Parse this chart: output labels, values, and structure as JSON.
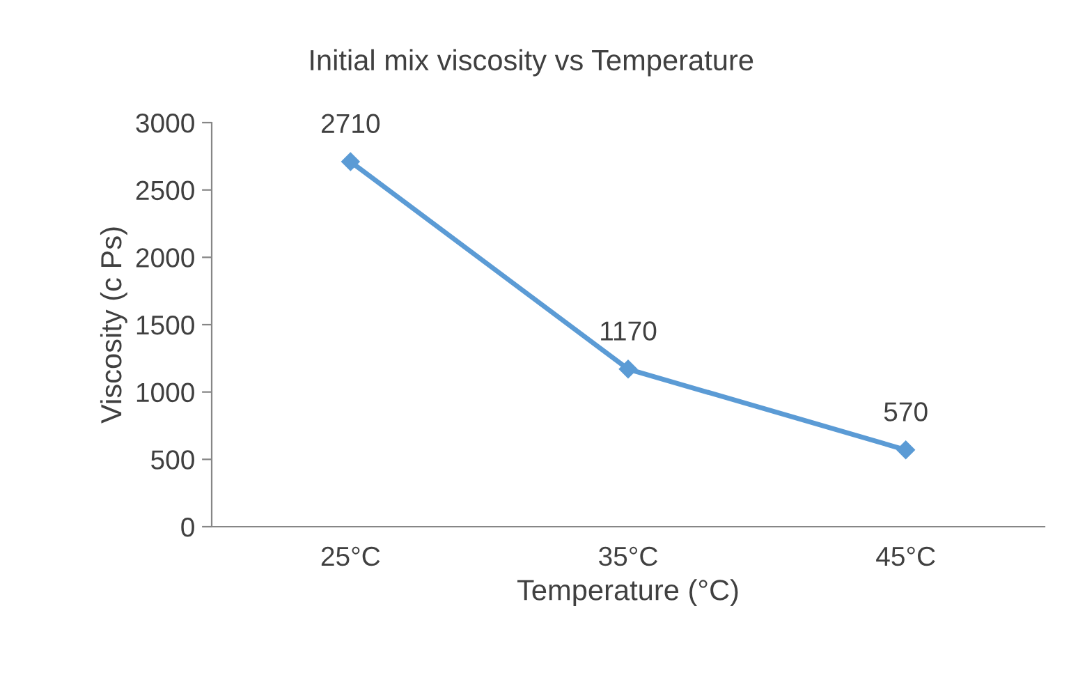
{
  "chart_data": {
    "type": "line",
    "title": "Initial mix viscosity vs Temperature",
    "xlabel": "Temperature (°C)",
    "ylabel": "Viscosity (c Ps)",
    "categories": [
      "25°C",
      "35°C",
      "45°C"
    ],
    "series": [
      {
        "color": "#5b9bd5",
        "values": [
          2710,
          1170,
          570
        ]
      }
    ],
    "ylim": [
      0,
      3000
    ],
    "yticks": [
      0,
      500,
      1000,
      1500,
      2000,
      2500,
      3000
    ],
    "marker": "diamond",
    "line_style": "solid",
    "data_labels": true,
    "grid": false,
    "legend": false
  }
}
